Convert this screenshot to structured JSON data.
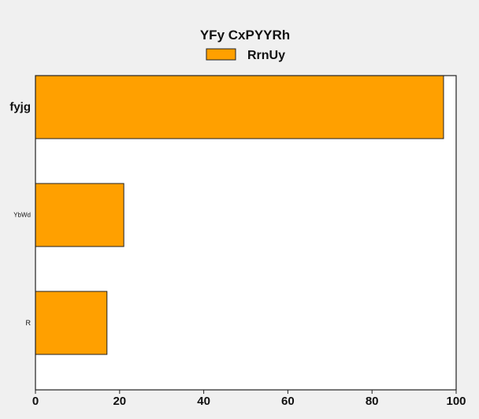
{
  "chart_data": {
    "type": "bar",
    "orientation": "horizontal",
    "title": "YFy CxPYYRh",
    "categories": [
      "fyjg",
      "YbWd",
      "R"
    ],
    "series": [
      {
        "name": "RrnUy",
        "values": [
          97,
          21,
          17
        ]
      }
    ],
    "xlim": [
      0,
      100
    ],
    "xticks": [
      0,
      20,
      40,
      60,
      80,
      100
    ],
    "grid": false,
    "legend_position": "top-center",
    "colors": {
      "bar_fill": "#ffa000",
      "bar_stroke": "#222222",
      "plot_background": "#ffffff",
      "page_background": "#f0f0f0"
    }
  }
}
